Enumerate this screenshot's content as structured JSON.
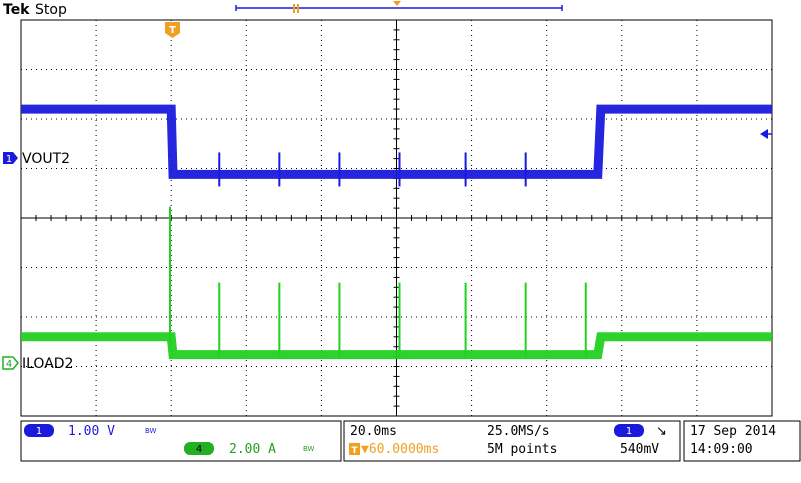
{
  "header": {
    "brand": "Tek",
    "status": "Stop"
  },
  "chart_data": {
    "type": "line",
    "title": "",
    "xlabel": "",
    "ylabel": "",
    "grid": true,
    "x_unit": "ms",
    "x": [
      0,
      25,
      25.3,
      96,
      96.5,
      125
    ],
    "series": [
      {
        "name": "VOUT2",
        "channel": "1",
        "color": "#1a1adc",
        "divisions": [
          7.75,
          7.75,
          6.1,
          6.1,
          7.75,
          7.75
        ],
        "spikes_ms": [
          33,
          43,
          53,
          63,
          74,
          84
        ]
      },
      {
        "name": "ILOAD2",
        "channel": "4",
        "color": "#22d022",
        "divisions": [
          2.0,
          2.0,
          1.55,
          1.55,
          2.0,
          2.0
        ],
        "spikes_ms": [
          24.8,
          33,
          43,
          53,
          63,
          74,
          84,
          94
        ]
      }
    ],
    "xlim": [
      0,
      125
    ],
    "ylim": [
      0,
      10
    ],
    "markers": {
      "trigger_label": "T",
      "channel1_label": "1",
      "channel4_label": "4"
    }
  },
  "readout": {
    "ch1_num": "1",
    "ch1_scale": "1.00 V",
    "ch1_bw": "BW",
    "ch4_num": "4",
    "ch4_scale": "2.00 A",
    "ch4_bw": "BW",
    "timebase": "20.0ms",
    "sample_rate": "25.0MS/s",
    "trigger_pos": "▼60.0000ms",
    "record_length": "5M points",
    "trig_ch": "1",
    "trig_slope": "↘",
    "trig_level": "540mV",
    "date": "17 Sep  2014",
    "time": "14:09:00"
  },
  "colors": {
    "ch1": "#1a1adc",
    "ch4": "#22d022",
    "trigger": "#f0a020",
    "grid": "#000000"
  }
}
